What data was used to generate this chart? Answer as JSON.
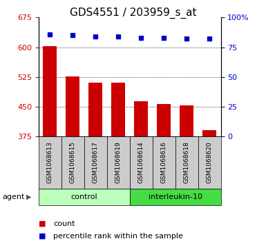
{
  "title": "GDS4551 / 203959_s_at",
  "categories": [
    "GSM1068613",
    "GSM1068615",
    "GSM1068617",
    "GSM1068619",
    "GSM1068614",
    "GSM1068616",
    "GSM1068618",
    "GSM1068620"
  ],
  "bar_values": [
    603,
    526,
    510,
    510,
    463,
    456,
    453,
    390
  ],
  "percentile_values": [
    86,
    85,
    84,
    84,
    83,
    83,
    82,
    82
  ],
  "bar_color": "#cc0000",
  "dot_color": "#0000cc",
  "ylim_left": [
    375,
    675
  ],
  "ylim_right": [
    0,
    100
  ],
  "yticks_left": [
    375,
    450,
    525,
    600,
    675
  ],
  "yticks_right": [
    0,
    25,
    50,
    75,
    100
  ],
  "grid_ticks": [
    450,
    525,
    600
  ],
  "control_label": "control",
  "interleukin_label": "interleukin-10",
  "agent_label": "agent",
  "control_bg": "#bbffbb",
  "interleukin_bg": "#44dd44",
  "sample_bg": "#cccccc",
  "legend_count": "count",
  "legend_percentile": "percentile rank within the sample",
  "title_fontsize": 11,
  "tick_fontsize": 8,
  "axis_label_color_left": "#cc0000",
  "axis_label_color_right": "#0000cc"
}
